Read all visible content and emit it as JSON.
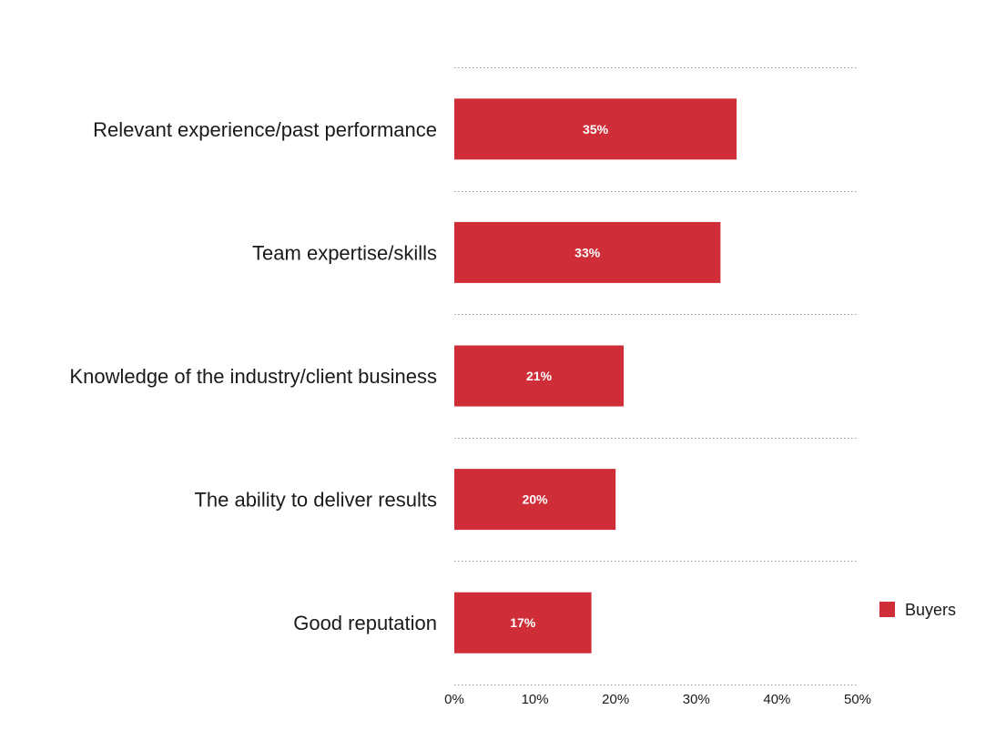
{
  "chart_data": {
    "type": "bar",
    "orientation": "horizontal",
    "categories": [
      "Relevant experience/past performance",
      "Team expertise/skills",
      "Knowledge of the industry/client business",
      "The ability to deliver results",
      "Good reputation"
    ],
    "series": [
      {
        "name": "Buyers",
        "values": [
          35,
          33,
          21,
          20,
          17
        ],
        "color": "#cf2e38"
      }
    ],
    "data_labels": [
      "35%",
      "33%",
      "21%",
      "20%",
      "17%"
    ],
    "x_ticks": [
      "0%",
      "10%",
      "20%",
      "30%",
      "40%",
      "50%"
    ],
    "xlim": [
      0,
      50
    ],
    "title": "",
    "xlabel": "",
    "ylabel": "",
    "grid": "horizontal dotted separators",
    "legend": "right"
  }
}
